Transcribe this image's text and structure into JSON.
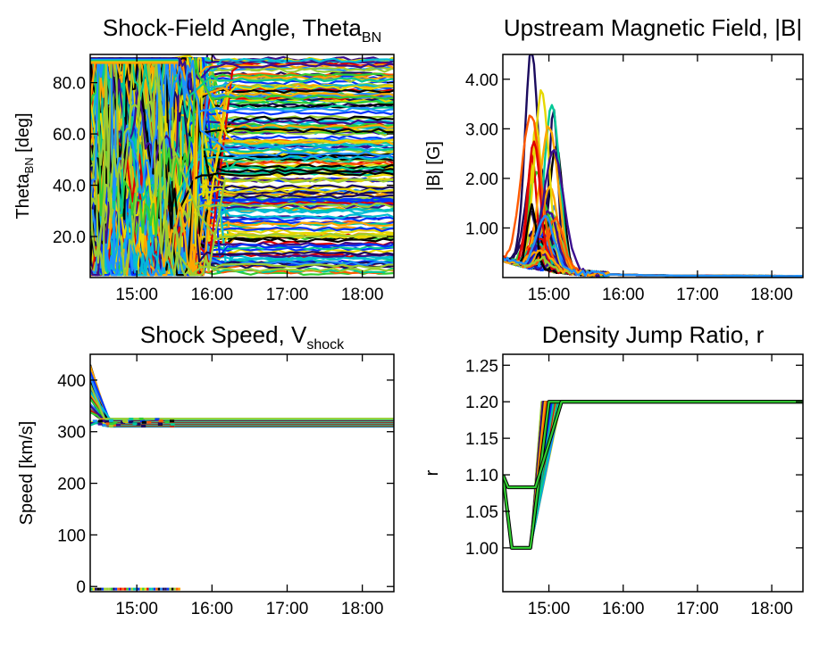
{
  "panels": [
    {
      "title": "Shock-Field Angle, Theta",
      "title_sub": "BN",
      "ylabel": "Theta",
      "ylabel_sub": "BN",
      "ylabel_suffix": " [deg]"
    },
    {
      "title": "Upstream Magnetic Field, |B|",
      "title_sub": "",
      "ylabel": "|B| [G]",
      "ylabel_sub": "",
      "ylabel_suffix": ""
    },
    {
      "title": "Shock Speed, V",
      "title_sub": "shock",
      "ylabel": "Speed [km/s]",
      "ylabel_sub": "",
      "ylabel_suffix": ""
    },
    {
      "title": "Density Jump Ratio, r",
      "title_sub": "",
      "ylabel": "r",
      "ylabel_sub": "",
      "ylabel_suffix": ""
    }
  ],
  "colors": {
    "palette": [
      "#1a0a5e",
      "#3b0f8f",
      "#0033ff",
      "#1e90ff",
      "#00bcd4",
      "#00c896",
      "#32cd32",
      "#9acd32",
      "#e6d800",
      "#ffa500",
      "#ff5a00",
      "#e00000",
      "#000000"
    ],
    "frame": "#000000"
  },
  "chart_data": [
    {
      "type": "line",
      "title": "Shock-Field Angle, Theta_BN",
      "xlabel": "",
      "ylabel": "Theta_BN [deg]",
      "xlim": [
        14.38,
        18.42
      ],
      "ylim": [
        4,
        91
      ],
      "xticks": [
        15,
        16,
        17,
        18
      ],
      "xtick_labels": [
        "15:00",
        "16:00",
        "17:00",
        "18:00"
      ],
      "yticks": [
        20,
        40,
        60,
        80
      ],
      "ytick_labels": [
        "20.0",
        "40.0",
        "60.0",
        "80.0"
      ],
      "series_count": 180,
      "series_note": "many field lines: noisy 5-90 deg before ~15:50, converging to steady values 5-90 deg after 16:00",
      "sample_series": [
        {
          "x": [
            14.4,
            14.8,
            15.2,
            15.6,
            16.0,
            17.0,
            18.4
          ],
          "y": [
            45,
            70,
            30,
            80,
            52,
            50,
            48
          ]
        },
        {
          "x": [
            14.4,
            14.8,
            15.2,
            15.6,
            16.0,
            17.0,
            18.4
          ],
          "y": [
            25,
            60,
            85,
            40,
            15,
            12,
            12
          ]
        },
        {
          "x": [
            14.4,
            14.8,
            15.2,
            15.6,
            16.0,
            17.0,
            18.4
          ],
          "y": [
            88,
            50,
            70,
            60,
            78,
            80,
            82
          ]
        }
      ]
    },
    {
      "type": "line",
      "title": "Upstream Magnetic Field, |B|",
      "xlabel": "",
      "ylabel": "|B| [G]",
      "xlim": [
        14.38,
        18.42
      ],
      "ylim": [
        0,
        4.5
      ],
      "xticks": [
        15,
        16,
        17,
        18
      ],
      "xtick_labels": [
        "15:00",
        "16:00",
        "17:00",
        "18:00"
      ],
      "yticks": [
        1,
        2,
        3,
        4
      ],
      "ytick_labels": [
        "1.00",
        "2.00",
        "3.00",
        "4.00"
      ],
      "series_count": 60,
      "series_note": "peak near 15:00 up to ~4.4 G, decaying to ~0 after 16:00",
      "max_value": 4.4
    },
    {
      "type": "line",
      "title": "Shock Speed, V_shock",
      "xlabel": "",
      "ylabel": "Speed [km/s]",
      "xlim": [
        14.38,
        18.42
      ],
      "ylim": [
        -10,
        450
      ],
      "xticks": [
        15,
        16,
        17,
        18
      ],
      "xtick_labels": [
        "15:00",
        "16:00",
        "17:00",
        "18:00"
      ],
      "yticks": [
        0,
        100,
        200,
        300,
        400
      ],
      "ytick_labels": [
        "0",
        "100",
        "200",
        "300",
        "400"
      ],
      "series_count": 60,
      "series_note": "start 310-430 km/s, settle to 310-325 km/s after ~14:40; some lines at ~-5 km/s before 15:35",
      "plateau_range": [
        310,
        325
      ]
    },
    {
      "type": "line",
      "title": "Density Jump Ratio, r",
      "xlabel": "",
      "ylabel": "r",
      "xlim": [
        14.38,
        18.42
      ],
      "ylim": [
        0.94,
        1.265
      ],
      "xticks": [
        15,
        16,
        17,
        18
      ],
      "xtick_labels": [
        "15:00",
        "16:00",
        "17:00",
        "18:00"
      ],
      "yticks": [
        1.0,
        1.05,
        1.1,
        1.15,
        1.2,
        1.25
      ],
      "ytick_labels": [
        "1.00",
        "1.05",
        "1.10",
        "1.15",
        "1.20",
        "1.25"
      ],
      "series_count": 50,
      "series_note": "from 1.10 at 14:22 drop to 1.00 (14:30-14:45), rise to 1.20 by 15:00-15:10, constant 1.20 afterwards",
      "sample_series": [
        {
          "x": [
            14.38,
            14.5,
            14.75,
            15.0,
            18.42
          ],
          "y": [
            1.1,
            1.0,
            1.0,
            1.2,
            1.2
          ]
        },
        {
          "x": [
            14.38,
            14.45,
            14.82,
            15.17,
            18.42
          ],
          "y": [
            1.1,
            1.083,
            1.083,
            1.2,
            1.2
          ]
        }
      ]
    }
  ]
}
